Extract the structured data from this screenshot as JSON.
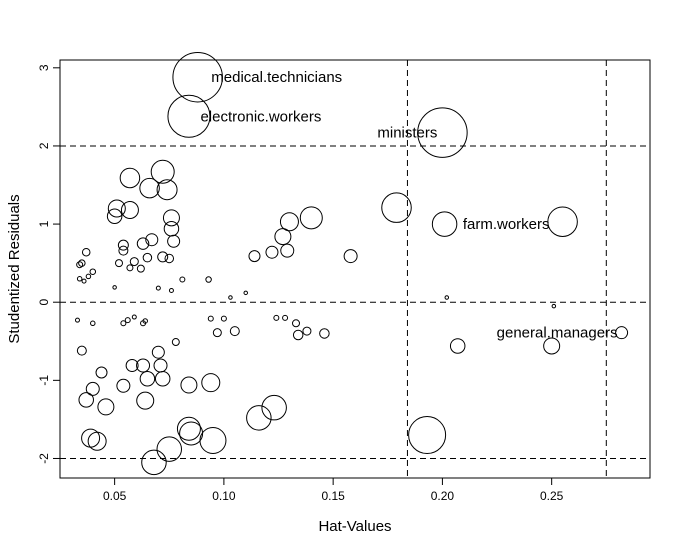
{
  "chart_data": {
    "type": "scatter",
    "title": "",
    "xlabel": "Hat-Values",
    "ylabel": "Studentized Residuals",
    "xlim": [
      0.025,
      0.295
    ],
    "ylim": [
      -2.25,
      3.1
    ],
    "xticks": [
      0.05,
      0.1,
      0.15,
      0.2,
      0.25
    ],
    "xtick_labels": [
      "0.05",
      "0.10",
      "0.15",
      "0.20",
      "0.25"
    ],
    "yticks": [
      -2,
      -1,
      0,
      1,
      2,
      3
    ],
    "ytick_labels": [
      "-2",
      "-1",
      "0",
      "1",
      "2",
      "3"
    ],
    "grid": false,
    "marker": "open-circle",
    "marker_size_encodes": "Cook's distance (relative)",
    "reference_lines": {
      "horizontal": [
        -2,
        0,
        2
      ],
      "vertical": [
        0.184,
        0.275
      ],
      "style": "dashed"
    },
    "labeled_points": [
      {
        "label": "medical.technicians",
        "x": 0.088,
        "y": 2.88,
        "size": 0.95
      },
      {
        "label": "electronic.workers",
        "x": 0.084,
        "y": 2.38,
        "size": 0.8
      },
      {
        "label": "ministers",
        "x": 0.2,
        "y": 2.17,
        "size": 0.95
      },
      {
        "label": "farm.workers",
        "x": 0.201,
        "y": 1.0,
        "size": 0.45
      },
      {
        "label": "general.managers",
        "x": 0.282,
        "y": -0.39,
        "size": 0.2
      }
    ],
    "points": [
      {
        "x": 0.255,
        "y": 1.03,
        "size": 0.55
      },
      {
        "x": 0.179,
        "y": 1.21,
        "size": 0.55
      },
      {
        "x": 0.193,
        "y": -1.7,
        "size": 0.7
      },
      {
        "x": 0.25,
        "y": -0.56,
        "size": 0.28
      },
      {
        "x": 0.207,
        "y": -0.56,
        "size": 0.25
      },
      {
        "x": 0.158,
        "y": 0.59,
        "size": 0.22
      },
      {
        "x": 0.14,
        "y": 1.08,
        "size": 0.4
      },
      {
        "x": 0.13,
        "y": 1.03,
        "size": 0.32
      },
      {
        "x": 0.127,
        "y": 0.84,
        "size": 0.28
      },
      {
        "x": 0.129,
        "y": 0.66,
        "size": 0.22
      },
      {
        "x": 0.122,
        "y": 0.64,
        "size": 0.2
      },
      {
        "x": 0.114,
        "y": 0.59,
        "size": 0.18
      },
      {
        "x": 0.146,
        "y": -0.4,
        "size": 0.15
      },
      {
        "x": 0.138,
        "y": -0.37,
        "size": 0.12
      },
      {
        "x": 0.134,
        "y": -0.42,
        "size": 0.15
      },
      {
        "x": 0.133,
        "y": -0.27,
        "size": 0.1
      },
      {
        "x": 0.105,
        "y": -0.37,
        "size": 0.14
      },
      {
        "x": 0.097,
        "y": -0.39,
        "size": 0.12
      },
      {
        "x": 0.123,
        "y": -1.35,
        "size": 0.45
      },
      {
        "x": 0.116,
        "y": -1.48,
        "size": 0.45
      },
      {
        "x": 0.094,
        "y": -1.03,
        "size": 0.32
      },
      {
        "x": 0.084,
        "y": -1.06,
        "size": 0.28
      },
      {
        "x": 0.095,
        "y": -1.77,
        "size": 0.48
      },
      {
        "x": 0.084,
        "y": -1.62,
        "size": 0.42
      },
      {
        "x": 0.085,
        "y": -1.68,
        "size": 0.42
      },
      {
        "x": 0.075,
        "y": -1.88,
        "size": 0.45
      },
      {
        "x": 0.068,
        "y": -2.05,
        "size": 0.45
      },
      {
        "x": 0.064,
        "y": -1.26,
        "size": 0.3
      },
      {
        "x": 0.065,
        "y": -0.98,
        "size": 0.25
      },
      {
        "x": 0.072,
        "y": -0.98,
        "size": 0.25
      },
      {
        "x": 0.063,
        "y": -0.81,
        "size": 0.22
      },
      {
        "x": 0.071,
        "y": -0.81,
        "size": 0.22
      },
      {
        "x": 0.058,
        "y": -0.81,
        "size": 0.2
      },
      {
        "x": 0.07,
        "y": -0.64,
        "size": 0.2
      },
      {
        "x": 0.054,
        "y": -1.07,
        "size": 0.22
      },
      {
        "x": 0.046,
        "y": -1.34,
        "size": 0.28
      },
      {
        "x": 0.037,
        "y": -1.25,
        "size": 0.25
      },
      {
        "x": 0.04,
        "y": -1.11,
        "size": 0.22
      },
      {
        "x": 0.044,
        "y": -0.9,
        "size": 0.18
      },
      {
        "x": 0.035,
        "y": -0.62,
        "size": 0.14
      },
      {
        "x": 0.039,
        "y": -1.74,
        "size": 0.32
      },
      {
        "x": 0.042,
        "y": -1.78,
        "size": 0.32
      },
      {
        "x": 0.072,
        "y": 1.67,
        "size": 0.42
      },
      {
        "x": 0.074,
        "y": 1.44,
        "size": 0.36
      },
      {
        "x": 0.057,
        "y": 1.59,
        "size": 0.35
      },
      {
        "x": 0.066,
        "y": 1.46,
        "size": 0.35
      },
      {
        "x": 0.051,
        "y": 1.2,
        "size": 0.3
      },
      {
        "x": 0.057,
        "y": 1.18,
        "size": 0.3
      },
      {
        "x": 0.05,
        "y": 1.1,
        "size": 0.25
      },
      {
        "x": 0.076,
        "y": 1.08,
        "size": 0.28
      },
      {
        "x": 0.076,
        "y": 0.94,
        "size": 0.25
      },
      {
        "x": 0.077,
        "y": 0.78,
        "size": 0.2
      },
      {
        "x": 0.067,
        "y": 0.8,
        "size": 0.2
      },
      {
        "x": 0.063,
        "y": 0.75,
        "size": 0.19
      },
      {
        "x": 0.054,
        "y": 0.73,
        "size": 0.16
      },
      {
        "x": 0.054,
        "y": 0.66,
        "size": 0.14
      },
      {
        "x": 0.072,
        "y": 0.58,
        "size": 0.16
      },
      {
        "x": 0.075,
        "y": 0.56,
        "size": 0.13
      },
      {
        "x": 0.065,
        "y": 0.57,
        "size": 0.13
      },
      {
        "x": 0.059,
        "y": 0.52,
        "size": 0.12
      },
      {
        "x": 0.052,
        "y": 0.5,
        "size": 0.1
      },
      {
        "x": 0.062,
        "y": 0.43,
        "size": 0.1
      },
      {
        "x": 0.057,
        "y": 0.44,
        "size": 0.08
      },
      {
        "x": 0.037,
        "y": 0.64,
        "size": 0.11
      },
      {
        "x": 0.035,
        "y": 0.5,
        "size": 0.09
      },
      {
        "x": 0.034,
        "y": 0.48,
        "size": 0.08
      },
      {
        "x": 0.04,
        "y": 0.39,
        "size": 0.07
      },
      {
        "x": 0.034,
        "y": 0.3,
        "size": 0.05
      },
      {
        "x": 0.036,
        "y": 0.27,
        "size": 0.04
      },
      {
        "x": 0.038,
        "y": 0.33,
        "size": 0.05
      },
      {
        "x": 0.081,
        "y": 0.29,
        "size": 0.06
      },
      {
        "x": 0.093,
        "y": 0.29,
        "size": 0.07
      },
      {
        "x": 0.07,
        "y": 0.18,
        "size": 0.04
      },
      {
        "x": 0.076,
        "y": 0.15,
        "size": 0.04
      },
      {
        "x": 0.05,
        "y": 0.19,
        "size": 0.03
      },
      {
        "x": 0.103,
        "y": 0.06,
        "size": 0.03
      },
      {
        "x": 0.11,
        "y": 0.12,
        "size": 0.03
      },
      {
        "x": 0.202,
        "y": 0.06,
        "size": 0.03
      },
      {
        "x": 0.251,
        "y": -0.05,
        "size": 0.03
      },
      {
        "x": 0.033,
        "y": -0.23,
        "size": 0.04
      },
      {
        "x": 0.04,
        "y": -0.27,
        "size": 0.05
      },
      {
        "x": 0.054,
        "y": -0.27,
        "size": 0.06
      },
      {
        "x": 0.056,
        "y": -0.23,
        "size": 0.06
      },
      {
        "x": 0.063,
        "y": -0.27,
        "size": 0.06
      },
      {
        "x": 0.064,
        "y": -0.24,
        "size": 0.05
      },
      {
        "x": 0.094,
        "y": -0.21,
        "size": 0.06
      },
      {
        "x": 0.1,
        "y": -0.21,
        "size": 0.06
      },
      {
        "x": 0.124,
        "y": -0.2,
        "size": 0.06
      },
      {
        "x": 0.128,
        "y": -0.2,
        "size": 0.06
      },
      {
        "x": 0.078,
        "y": -0.51,
        "size": 0.1
      },
      {
        "x": 0.059,
        "y": -0.19,
        "size": 0.04
      }
    ]
  }
}
